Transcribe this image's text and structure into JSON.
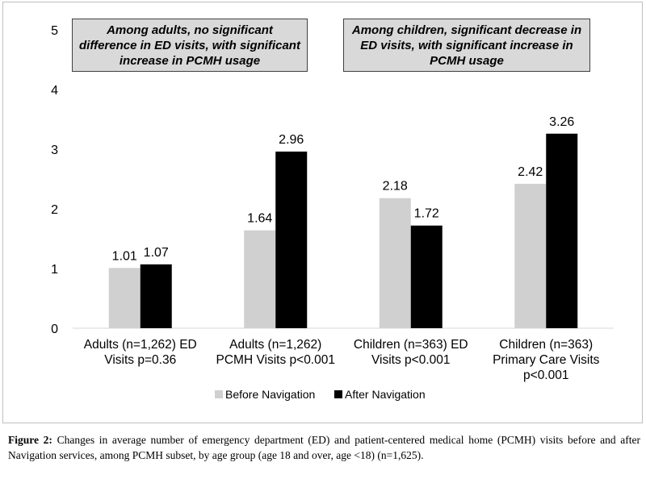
{
  "chart_data": {
    "type": "bar",
    "title": "",
    "xlabel": "",
    "ylabel": "",
    "ylim": [
      0,
      5
    ],
    "yticks": [
      "0",
      "1",
      "2",
      "3",
      "4",
      "5"
    ],
    "categories": [
      [
        "Adults (n=1,262) ED",
        "Visits p=0.36"
      ],
      [
        "Adults (n=1,262)",
        "PCMH Visits p<0.001"
      ],
      [
        "Children (n=363) ED",
        "Visits p<0.001"
      ],
      [
        "Children (n=363)",
        "Primary Care Visits",
        "p<0.001"
      ]
    ],
    "series": [
      {
        "name": "Before Navigation",
        "color": "#d0d0d0",
        "values": [
          1.01,
          1.64,
          2.18,
          2.42
        ],
        "labels": [
          "1.01",
          "1.64",
          "2.18",
          "2.42"
        ]
      },
      {
        "name": "After Navigation",
        "color": "#000000",
        "values": [
          1.07,
          2.96,
          1.72,
          3.26
        ],
        "labels": [
          "1.07",
          "2.96",
          "1.72",
          "3.26"
        ]
      }
    ],
    "annotations": [
      "Among adults, no significant difference in ED visits, with significant increase in PCMH usage",
      "Among children, significant decrease in ED visits, with significant increase in PCMH usage"
    ],
    "legend_position": "bottom"
  },
  "caption": {
    "label": "Figure 2:",
    "text": "Changes in average number of emergency department (ED) and patient-centered medical home (PCMH) visits before and after Navigation services, among PCMH subset, by age group (age 18 and over, age <18) (n=1,625)."
  }
}
